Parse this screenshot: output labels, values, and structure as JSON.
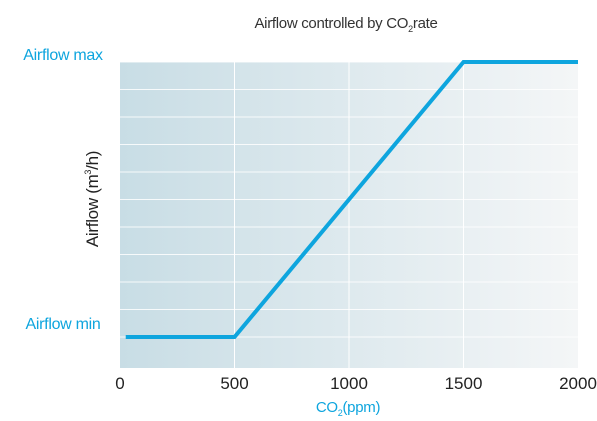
{
  "chart_data": {
    "type": "line",
    "title_main": "Airflow controlled by CO",
    "title_sub": "2",
    "title_tail": "rate",
    "xlabel_main": "CO",
    "xlabel_sub": "2",
    "xlabel_tail": "(ppm)",
    "ylabel_main": "Airflow (m",
    "ylabel_sup": "3",
    "ylabel_tail": "/h)",
    "y_level_max_label": "Airflow max",
    "y_level_min_label": "Airflow min",
    "xlim": [
      0,
      2000
    ],
    "ylim": [
      0,
      1
    ],
    "x_ticks": [
      0,
      500,
      1000,
      1500,
      2000
    ],
    "x_tick_labels": [
      "0",
      "500",
      "1000",
      "1500",
      "2000"
    ],
    "grid": true,
    "series": [
      {
        "x": [
          25,
          500,
          1500,
          2000
        ],
        "y": [
          0,
          0,
          1,
          1
        ]
      }
    ],
    "colors": {
      "line": "#0ea5de",
      "accent_text": "#0ea5de",
      "plot_bg_left": "#c8dde5",
      "plot_bg_right": "#f4f6f7",
      "grid": "#ffffff"
    }
  }
}
